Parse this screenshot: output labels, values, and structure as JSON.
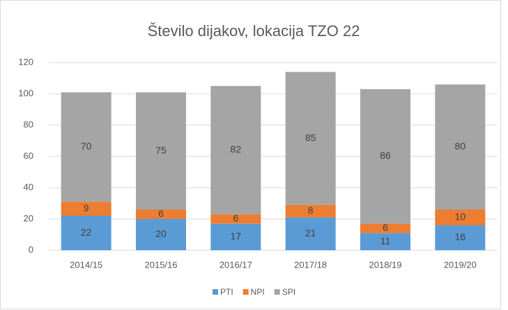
{
  "chart_data": {
    "type": "stacked_bar",
    "title": "Število dijakov, lokacija TZO 22",
    "categories": [
      "2014/15",
      "2015/16",
      "2016/17",
      "2017/18",
      "2018/19",
      "2019/20"
    ],
    "series": [
      {
        "name": "PTI",
        "color": "#5b9bd5",
        "values": [
          22,
          20,
          17,
          21,
          11,
          16
        ]
      },
      {
        "name": "NPI",
        "color": "#ed7d31",
        "values": [
          9,
          6,
          6,
          8,
          6,
          10
        ]
      },
      {
        "name": "SPI",
        "color": "#a5a5a5",
        "values": [
          70,
          75,
          82,
          85,
          86,
          80
        ]
      }
    ],
    "ylim": [
      0,
      120
    ],
    "yticks": [
      0,
      20,
      40,
      60,
      80,
      100,
      120
    ],
    "grid": true,
    "legend": "bottom"
  }
}
